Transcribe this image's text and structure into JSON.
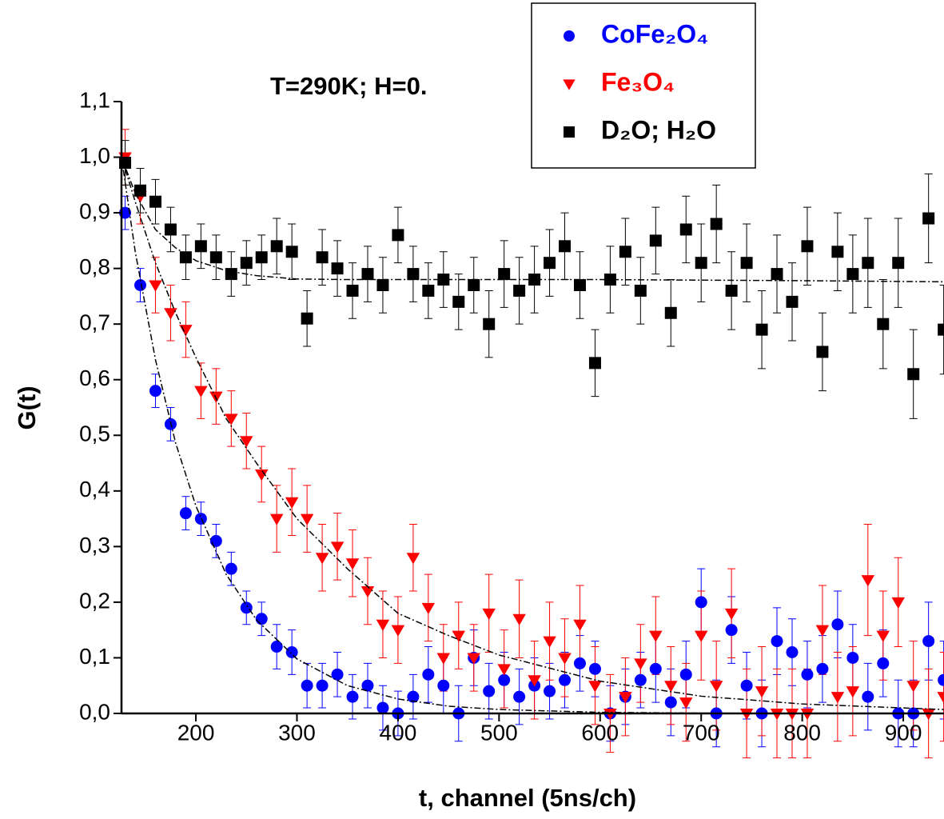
{
  "chart_data": {
    "type": "scatter",
    "annotation": "T=290K; H=0.",
    "x_label": "t, channel (5ns/ch)",
    "y_label": "G(t)",
    "xlim": [
      126.4,
      940.4
    ],
    "ylim": [
      0,
      1.1
    ],
    "xticks": [
      200,
      300,
      400,
      500,
      600,
      700,
      800,
      900
    ],
    "yticks": [
      {
        "value": 0,
        "label": "0,0"
      },
      {
        "value": 0.1,
        "label": "0,1"
      },
      {
        "value": 0.2,
        "label": "0,2"
      },
      {
        "value": 0.3,
        "label": "0,3"
      },
      {
        "value": 0.4,
        "label": "0,4"
      },
      {
        "value": 0.5,
        "label": "0,5"
      },
      {
        "value": 0.6,
        "label": "0,6"
      },
      {
        "value": 0.7,
        "label": "0,7"
      },
      {
        "value": 0.8,
        "label": "0,8"
      },
      {
        "value": 0.9,
        "label": "0,9"
      },
      {
        "value": 1.0,
        "label": "1,0"
      },
      {
        "value": 1.1,
        "label": "1,1"
      }
    ],
    "grid": false,
    "legend": "top-right",
    "x": [
      130,
      145,
      160,
      175,
      190,
      205,
      220,
      235,
      250,
      265,
      280,
      295,
      310,
      325,
      340,
      355,
      370,
      385,
      400,
      415,
      430,
      445,
      460,
      475,
      490,
      505,
      520,
      535,
      550,
      565,
      580,
      595,
      610,
      625,
      640,
      655,
      670,
      685,
      700,
      715,
      730,
      745,
      760,
      775,
      790,
      805,
      820,
      835,
      850,
      865,
      880,
      895,
      910,
      925,
      940
    ],
    "series": [
      {
        "name": "CoFe₂O₄",
        "color": "#0000ff",
        "marker": "circle",
        "values": [
          0.9,
          0.77,
          0.58,
          0.52,
          0.36,
          0.35,
          0.31,
          0.26,
          0.19,
          0.17,
          0.12,
          0.11,
          0.05,
          0.05,
          0.07,
          0.03,
          0.05,
          0.01,
          0.0,
          0.03,
          0.07,
          0.05,
          0.0,
          0.1,
          0.04,
          0.06,
          0.03,
          0.05,
          0.04,
          0.06,
          0.09,
          0.08,
          0.0,
          0.03,
          0.06,
          0.08,
          0.02,
          0.07,
          0.2,
          0.0,
          0.15,
          0.05,
          0.0,
          0.13,
          0.11,
          0.07,
          0.08,
          0.16,
          0.1,
          0.03,
          0.09,
          0.0,
          0.0,
          0.13,
          0.06
        ],
        "errors": [
          0.03,
          0.03,
          0.03,
          0.03,
          0.03,
          0.03,
          0.03,
          0.03,
          0.03,
          0.03,
          0.04,
          0.04,
          0.04,
          0.04,
          0.04,
          0.04,
          0.04,
          0.04,
          0.04,
          0.04,
          0.05,
          0.05,
          0.05,
          0.05,
          0.05,
          0.05,
          0.05,
          0.05,
          0.05,
          0.05,
          0.05,
          0.05,
          0.05,
          0.05,
          0.05,
          0.06,
          0.06,
          0.06,
          0.06,
          0.06,
          0.06,
          0.06,
          0.06,
          0.06,
          0.06,
          0.06,
          0.06,
          0.06,
          0.06,
          0.06,
          0.06,
          0.06,
          0.06,
          0.07,
          0.07
        ]
      },
      {
        "name": "Fe₃O₄",
        "color": "#ff0000",
        "marker": "triangle-down",
        "values": [
          1.0,
          0.93,
          0.77,
          0.72,
          0.69,
          0.58,
          0.57,
          0.53,
          0.49,
          0.43,
          0.35,
          0.38,
          0.35,
          0.28,
          0.3,
          0.27,
          0.22,
          0.16,
          0.15,
          0.28,
          0.19,
          0.1,
          0.14,
          0.1,
          0.18,
          0.08,
          0.17,
          0.06,
          0.13,
          0.1,
          0.16,
          0.05,
          0.0,
          0.03,
          0.09,
          0.14,
          0.05,
          0.02,
          0.14,
          0.05,
          0.18,
          0.0,
          0.04,
          0.0,
          0.0,
          0.0,
          0.15,
          0.03,
          0.04,
          0.24,
          0.14,
          0.2,
          0.05,
          0.0,
          0.03
        ],
        "errors": [
          0.05,
          0.05,
          0.05,
          0.05,
          0.05,
          0.05,
          0.05,
          0.05,
          0.05,
          0.05,
          0.06,
          0.06,
          0.06,
          0.06,
          0.06,
          0.06,
          0.06,
          0.06,
          0.06,
          0.06,
          0.06,
          0.06,
          0.06,
          0.06,
          0.07,
          0.07,
          0.07,
          0.07,
          0.07,
          0.07,
          0.07,
          0.07,
          0.07,
          0.07,
          0.07,
          0.07,
          0.07,
          0.07,
          0.08,
          0.08,
          0.08,
          0.08,
          0.08,
          0.08,
          0.08,
          0.08,
          0.08,
          0.08,
          0.08,
          0.1,
          0.08,
          0.08,
          0.08,
          0.08,
          0.08
        ]
      },
      {
        "name": "D₂O; H₂O",
        "color": "#000000",
        "marker": "square",
        "values": [
          0.99,
          0.94,
          0.92,
          0.87,
          0.82,
          0.84,
          0.82,
          0.79,
          0.81,
          0.82,
          0.84,
          0.83,
          0.71,
          0.82,
          0.8,
          0.76,
          0.79,
          0.77,
          0.86,
          0.79,
          0.76,
          0.78,
          0.74,
          0.77,
          0.7,
          0.79,
          0.76,
          0.78,
          0.81,
          0.84,
          0.77,
          0.63,
          0.78,
          0.83,
          0.76,
          0.85,
          0.72,
          0.87,
          0.81,
          0.88,
          0.76,
          0.81,
          0.69,
          0.79,
          0.74,
          0.84,
          0.65,
          0.83,
          0.79,
          0.81,
          0.7,
          0.81,
          0.61,
          0.89,
          0.69
        ],
        "errors": [
          0.04,
          0.04,
          0.04,
          0.04,
          0.04,
          0.04,
          0.04,
          0.04,
          0.04,
          0.04,
          0.05,
          0.05,
          0.05,
          0.05,
          0.05,
          0.05,
          0.05,
          0.05,
          0.05,
          0.05,
          0.05,
          0.05,
          0.05,
          0.05,
          0.06,
          0.06,
          0.06,
          0.06,
          0.06,
          0.06,
          0.06,
          0.06,
          0.06,
          0.06,
          0.06,
          0.06,
          0.06,
          0.06,
          0.07,
          0.07,
          0.07,
          0.07,
          0.07,
          0.07,
          0.07,
          0.07,
          0.07,
          0.07,
          0.07,
          0.08,
          0.08,
          0.08,
          0.08,
          0.08,
          0.08
        ]
      }
    ],
    "fits": [
      {
        "color": "#000000",
        "x": [
          126.4,
          140,
          160,
          180,
          200,
          230,
          260,
          300,
          350,
          400,
          450,
          500,
          600,
          700,
          800,
          940
        ],
        "values": [
          1.0,
          0.83,
          0.636,
          0.486,
          0.373,
          0.25,
          0.168,
          0.098,
          0.05,
          0.026,
          0.013,
          0.007,
          0.002,
          0.0005,
          0,
          0
        ]
      },
      {
        "color": "#000000",
        "x": [
          126.4,
          140,
          160,
          180,
          200,
          230,
          260,
          300,
          350,
          400,
          450,
          500,
          600,
          700,
          800,
          940
        ],
        "values": [
          1.0,
          0.92,
          0.81,
          0.72,
          0.64,
          0.53,
          0.45,
          0.35,
          0.26,
          0.18,
          0.14,
          0.105,
          0.058,
          0.031,
          0.017,
          0.007
        ]
      },
      {
        "color": "#000000",
        "x": [
          126.4,
          140,
          160,
          180,
          200,
          230,
          260,
          300,
          350,
          400,
          450,
          500,
          600,
          700,
          800,
          940
        ],
        "values": [
          1.0,
          0.935,
          0.87,
          0.837,
          0.814,
          0.796,
          0.787,
          0.781,
          0.78,
          0.78,
          0.78,
          0.78,
          0.78,
          0.779,
          0.778,
          0.776
        ]
      }
    ]
  }
}
